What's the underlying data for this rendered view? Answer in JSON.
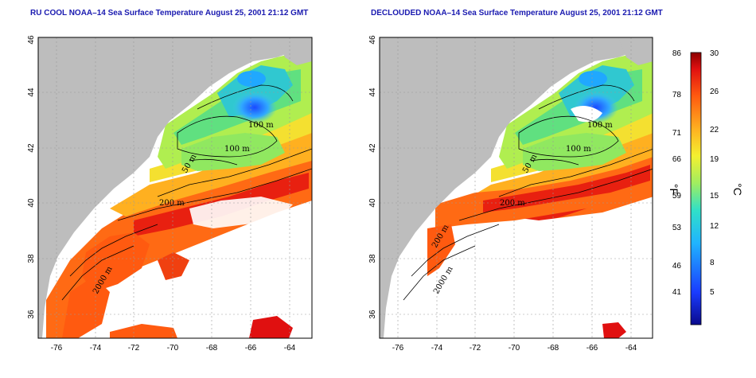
{
  "panels": [
    {
      "title": "RU COOL NOAA–14 Sea Surface Temperature August 25, 2001 21:12 GMT",
      "xticks": [
        "-76",
        "-74",
        "-72",
        "-70",
        "-68",
        "-66",
        "-64"
      ],
      "yticks": [
        "36",
        "38",
        "40",
        "42",
        "44",
        "46"
      ],
      "contour_labels": [
        "100 m",
        "100 m",
        "50 m",
        "200 m",
        "2000 m"
      ]
    },
    {
      "title": "DECLOUDED NOAA–14 Sea Surface Temperature August 25, 2001 21:12 GMT",
      "xticks": [
        "-76",
        "-74",
        "-72",
        "-70",
        "-68",
        "-66",
        "-64"
      ],
      "yticks": [
        "36",
        "38",
        "40",
        "42",
        "44",
        "46"
      ],
      "contour_labels": [
        "100 m",
        "100 m",
        "50 m",
        "200 m",
        "2000 m",
        "200 m"
      ]
    }
  ],
  "colorbar": {
    "fahrenheit_ticks": [
      "86",
      "78",
      "71",
      "66",
      "59",
      "53",
      "46",
      "41"
    ],
    "celsius_ticks": [
      "30",
      "26",
      "22",
      "19",
      "15",
      "12",
      "8",
      "5"
    ],
    "fahrenheit_unit": "°F",
    "celsius_unit": "°C"
  },
  "colors": {
    "land": "#bdbdbd",
    "cloud": "#ffffff",
    "title": "#1a1ab0"
  }
}
